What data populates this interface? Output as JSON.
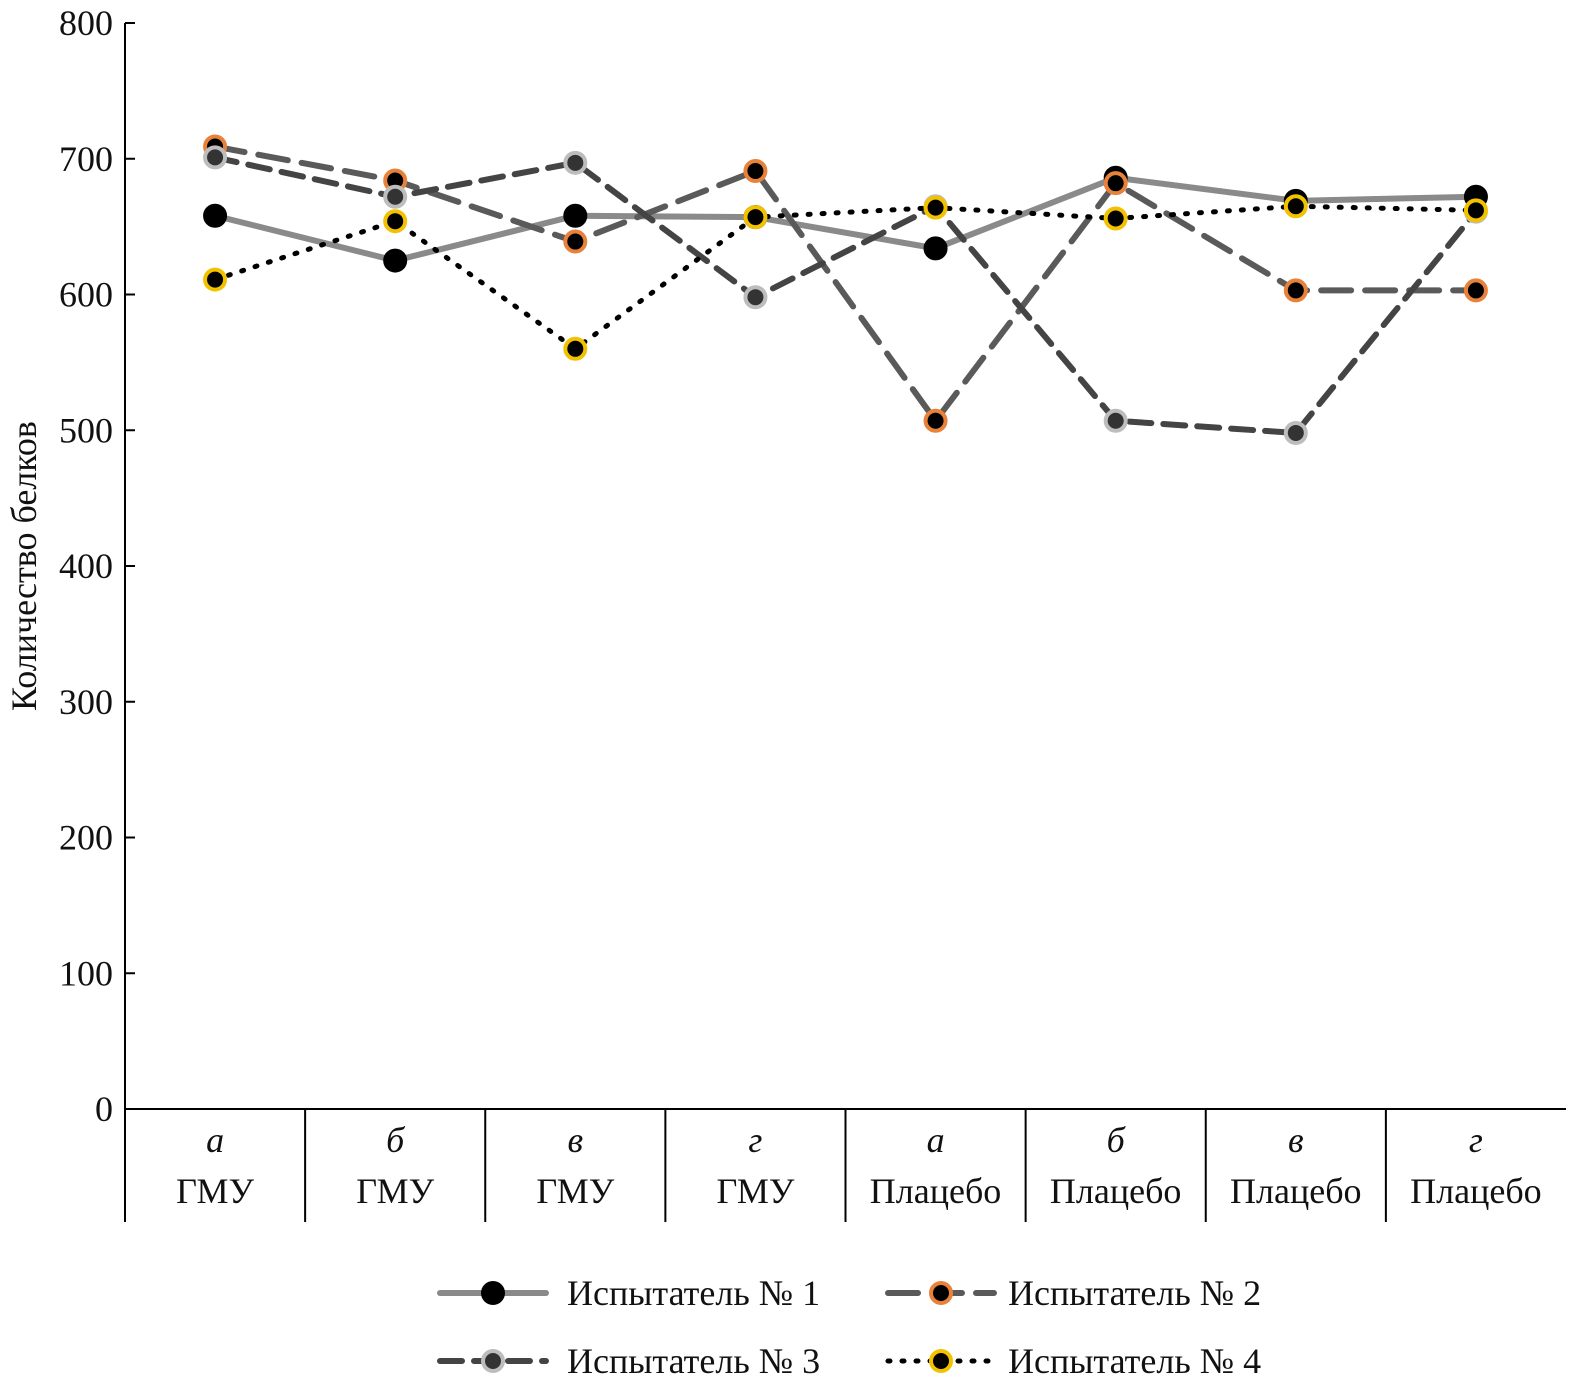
{
  "chart_data": {
    "type": "line",
    "title": "",
    "xlabel": "",
    "ylabel": "Количество белков",
    "ylim": [
      0,
      800
    ],
    "yticks": [
      0,
      100,
      200,
      300,
      400,
      500,
      600,
      700,
      800
    ],
    "grid": false,
    "legend_position": "bottom",
    "categories": [
      {
        "letter": "а",
        "group": "ГМУ"
      },
      {
        "letter": "б",
        "group": "ГМУ"
      },
      {
        "letter": "в",
        "group": "ГМУ"
      },
      {
        "letter": "г",
        "group": "ГМУ"
      },
      {
        "letter": "а",
        "group": "Плацебо"
      },
      {
        "letter": "б",
        "group": "Плацебо"
      },
      {
        "letter": "в",
        "group": "Плацебо"
      },
      {
        "letter": "г",
        "group": "Плацебо"
      }
    ],
    "series": [
      {
        "name": "Испытатель № 1",
        "line_color": "#8a8a8a",
        "marker_fill": "#000000",
        "marker_ring": "#000000",
        "style": "solid",
        "values": [
          658,
          625,
          658,
          657,
          634,
          686,
          669,
          672
        ]
      },
      {
        "name": "Испытатель № 2",
        "line_color": "#5a5a5a",
        "marker_fill": "#000000",
        "marker_ring": "#e8823a",
        "style": "long-dash",
        "values": [
          709,
          684,
          639,
          691,
          507,
          682,
          603,
          603
        ]
      },
      {
        "name": "Испытатель № 3",
        "line_color": "#444444",
        "marker_fill": "#333333",
        "marker_ring": "#bdbdbd",
        "style": "dash",
        "values": [
          701,
          672,
          697,
          598,
          665,
          507,
          498,
          661
        ]
      },
      {
        "name": "Испытатель № 4",
        "line_color": "#000000",
        "marker_fill": "#000000",
        "marker_ring": "#f2c200",
        "style": "dotted",
        "values": [
          611,
          654,
          560,
          657,
          664,
          656,
          665,
          662
        ]
      }
    ]
  }
}
